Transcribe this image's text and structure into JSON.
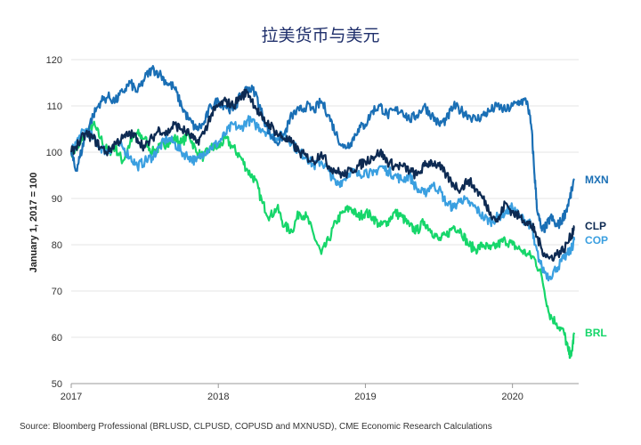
{
  "chart_data": {
    "type": "line",
    "title": "拉美货币与美元",
    "ylabel": "January 1, 2017 = 100",
    "xlabel": "",
    "xlim": [
      2017.0,
      2020.45
    ],
    "ylim": [
      50,
      120
    ],
    "y_ticks": [
      50,
      60,
      70,
      80,
      90,
      100,
      110,
      120
    ],
    "x_ticks": [
      {
        "value": 2017,
        "label": "2017"
      },
      {
        "value": 2018,
        "label": "2018"
      },
      {
        "value": 2019,
        "label": "2019"
      },
      {
        "value": 2020,
        "label": "2020"
      }
    ],
    "grid": "horizontal",
    "source": "Source: Bloomberg Professional (BRLUSD, CLPUSD, COPUSD and MXNUSD), CME Economic Research Calculations",
    "series": [
      {
        "name": "MXN",
        "color": "#1a6fb5",
        "x": [
          2017.0,
          2017.03,
          2017.06,
          2017.1,
          2017.15,
          2017.2,
          2017.25,
          2017.3,
          2017.35,
          2017.4,
          2017.45,
          2017.5,
          2017.55,
          2017.6,
          2017.65,
          2017.7,
          2017.75,
          2017.8,
          2017.85,
          2017.9,
          2017.95,
          2018.0,
          2018.05,
          2018.1,
          2018.15,
          2018.2,
          2018.25,
          2018.3,
          2018.35,
          2018.4,
          2018.45,
          2018.5,
          2018.55,
          2018.6,
          2018.65,
          2018.7,
          2018.75,
          2018.8,
          2018.85,
          2018.9,
          2018.95,
          2019.0,
          2019.05,
          2019.1,
          2019.15,
          2019.2,
          2019.25,
          2019.3,
          2019.35,
          2019.4,
          2019.45,
          2019.5,
          2019.55,
          2019.6,
          2019.65,
          2019.7,
          2019.75,
          2019.8,
          2019.85,
          2019.9,
          2019.95,
          2020.0,
          2020.05,
          2020.1,
          2020.13,
          2020.15,
          2020.17,
          2020.2,
          2020.23,
          2020.26,
          2020.3,
          2020.33,
          2020.36,
          2020.39,
          2020.42
        ],
        "y": [
          100,
          96,
          99,
          104,
          108,
          111,
          112,
          111,
          113,
          115,
          113,
          116,
          118,
          117,
          115,
          114,
          110,
          107,
          105,
          106,
          110,
          111,
          110,
          109,
          112,
          114,
          113,
          108,
          104,
          102,
          104,
          108,
          109,
          110,
          109,
          111,
          108,
          104,
          101,
          102,
          105,
          106,
          109,
          110,
          108,
          109,
          109,
          107,
          108,
          110,
          108,
          106,
          107,
          110,
          109,
          108,
          107,
          108,
          109,
          110,
          109,
          110,
          111,
          111,
          105,
          95,
          87,
          83,
          84,
          86,
          84,
          85,
          87,
          90,
          94
        ]
      },
      {
        "name": "CLP",
        "color": "#0d2a52",
        "x": [
          2017.0,
          2017.05,
          2017.1,
          2017.15,
          2017.2,
          2017.25,
          2017.3,
          2017.35,
          2017.4,
          2017.45,
          2017.5,
          2017.55,
          2017.6,
          2017.65,
          2017.7,
          2017.75,
          2017.8,
          2017.85,
          2017.9,
          2017.95,
          2018.0,
          2018.05,
          2018.1,
          2018.15,
          2018.2,
          2018.25,
          2018.3,
          2018.35,
          2018.4,
          2018.45,
          2018.5,
          2018.55,
          2018.6,
          2018.65,
          2018.7,
          2018.75,
          2018.8,
          2018.85,
          2018.9,
          2018.95,
          2019.0,
          2019.05,
          2019.1,
          2019.15,
          2019.2,
          2019.25,
          2019.3,
          2019.35,
          2019.4,
          2019.45,
          2019.5,
          2019.55,
          2019.6,
          2019.65,
          2019.7,
          2019.75,
          2019.8,
          2019.85,
          2019.9,
          2019.95,
          2020.0,
          2020.05,
          2020.1,
          2020.13,
          2020.15,
          2020.2,
          2020.25,
          2020.3,
          2020.35,
          2020.4,
          2020.42
        ],
        "y": [
          100,
          102,
          104,
          103,
          101,
          100,
          102,
          103,
          104,
          103,
          101,
          103,
          105,
          104,
          106,
          105,
          104,
          102,
          104,
          108,
          110,
          111,
          110,
          112,
          113,
          110,
          107,
          106,
          104,
          103,
          102,
          100,
          99,
          98,
          100,
          97,
          96,
          95,
          96,
          97,
          98,
          99,
          100,
          98,
          97,
          97,
          96,
          95,
          97,
          98,
          97,
          95,
          93,
          92,
          94,
          92,
          90,
          87,
          85,
          89,
          87,
          86,
          85,
          84,
          83,
          79,
          77,
          78,
          79,
          82,
          84
        ]
      },
      {
        "name": "COP",
        "color": "#3a9fe0",
        "x": [
          2017.0,
          2017.05,
          2017.1,
          2017.15,
          2017.2,
          2017.25,
          2017.3,
          2017.35,
          2017.4,
          2017.45,
          2017.5,
          2017.55,
          2017.6,
          2017.65,
          2017.7,
          2017.75,
          2017.8,
          2017.85,
          2017.9,
          2017.95,
          2018.0,
          2018.05,
          2018.1,
          2018.15,
          2018.2,
          2018.25,
          2018.3,
          2018.35,
          2018.4,
          2018.45,
          2018.5,
          2018.55,
          2018.6,
          2018.65,
          2018.7,
          2018.75,
          2018.8,
          2018.85,
          2018.9,
          2018.95,
          2019.0,
          2019.05,
          2019.1,
          2019.15,
          2019.2,
          2019.25,
          2019.3,
          2019.35,
          2019.4,
          2019.45,
          2019.5,
          2019.55,
          2019.6,
          2019.65,
          2019.7,
          2019.75,
          2019.8,
          2019.85,
          2019.9,
          2019.95,
          2020.0,
          2020.05,
          2020.1,
          2020.13,
          2020.15,
          2020.2,
          2020.25,
          2020.3,
          2020.35,
          2020.4,
          2020.42
        ],
        "y": [
          100,
          103,
          105,
          103,
          101,
          100,
          102,
          101,
          99,
          97,
          98,
          99,
          101,
          103,
          102,
          100,
          99,
          98,
          100,
          101,
          102,
          104,
          106,
          105,
          107,
          106,
          105,
          104,
          103,
          104,
          102,
          100,
          99,
          97,
          98,
          96,
          93,
          94,
          96,
          95,
          96,
          95,
          97,
          96,
          95,
          94,
          95,
          92,
          91,
          93,
          92,
          89,
          88,
          90,
          89,
          88,
          86,
          85,
          86,
          87,
          88,
          86,
          85,
          84,
          80,
          75,
          73,
          75,
          77,
          79,
          81
        ]
      },
      {
        "name": "BRL",
        "color": "#16d66a",
        "x": [
          2017.0,
          2017.05,
          2017.1,
          2017.15,
          2017.2,
          2017.25,
          2017.3,
          2017.35,
          2017.4,
          2017.45,
          2017.5,
          2017.55,
          2017.6,
          2017.65,
          2017.7,
          2017.75,
          2017.8,
          2017.85,
          2017.9,
          2017.95,
          2018.0,
          2018.05,
          2018.1,
          2018.15,
          2018.2,
          2018.25,
          2018.3,
          2018.35,
          2018.4,
          2018.45,
          2018.5,
          2018.55,
          2018.6,
          2018.65,
          2018.7,
          2018.75,
          2018.8,
          2018.85,
          2018.9,
          2018.95,
          2019.0,
          2019.05,
          2019.1,
          2019.15,
          2019.2,
          2019.25,
          2019.3,
          2019.35,
          2019.4,
          2019.45,
          2019.5,
          2019.55,
          2019.6,
          2019.65,
          2019.7,
          2019.75,
          2019.8,
          2019.85,
          2019.9,
          2019.95,
          2020.0,
          2020.05,
          2020.1,
          2020.15,
          2020.2,
          2020.25,
          2020.3,
          2020.35,
          2020.38,
          2020.4,
          2020.42
        ],
        "y": [
          100,
          101,
          104,
          106,
          103,
          100,
          101,
          98,
          102,
          104,
          103,
          100,
          101,
          102,
          103,
          102,
          104,
          100,
          99,
          101,
          101,
          103,
          101,
          99,
          96,
          94,
          89,
          86,
          88,
          84,
          83,
          87,
          86,
          82,
          78,
          81,
          85,
          87,
          88,
          86,
          87,
          86,
          84,
          85,
          87,
          86,
          84,
          83,
          85,
          83,
          81,
          82,
          84,
          83,
          80,
          79,
          80,
          79,
          80,
          81,
          80,
          79,
          78,
          77,
          73,
          65,
          63,
          61,
          57,
          56,
          61
        ]
      }
    ]
  }
}
